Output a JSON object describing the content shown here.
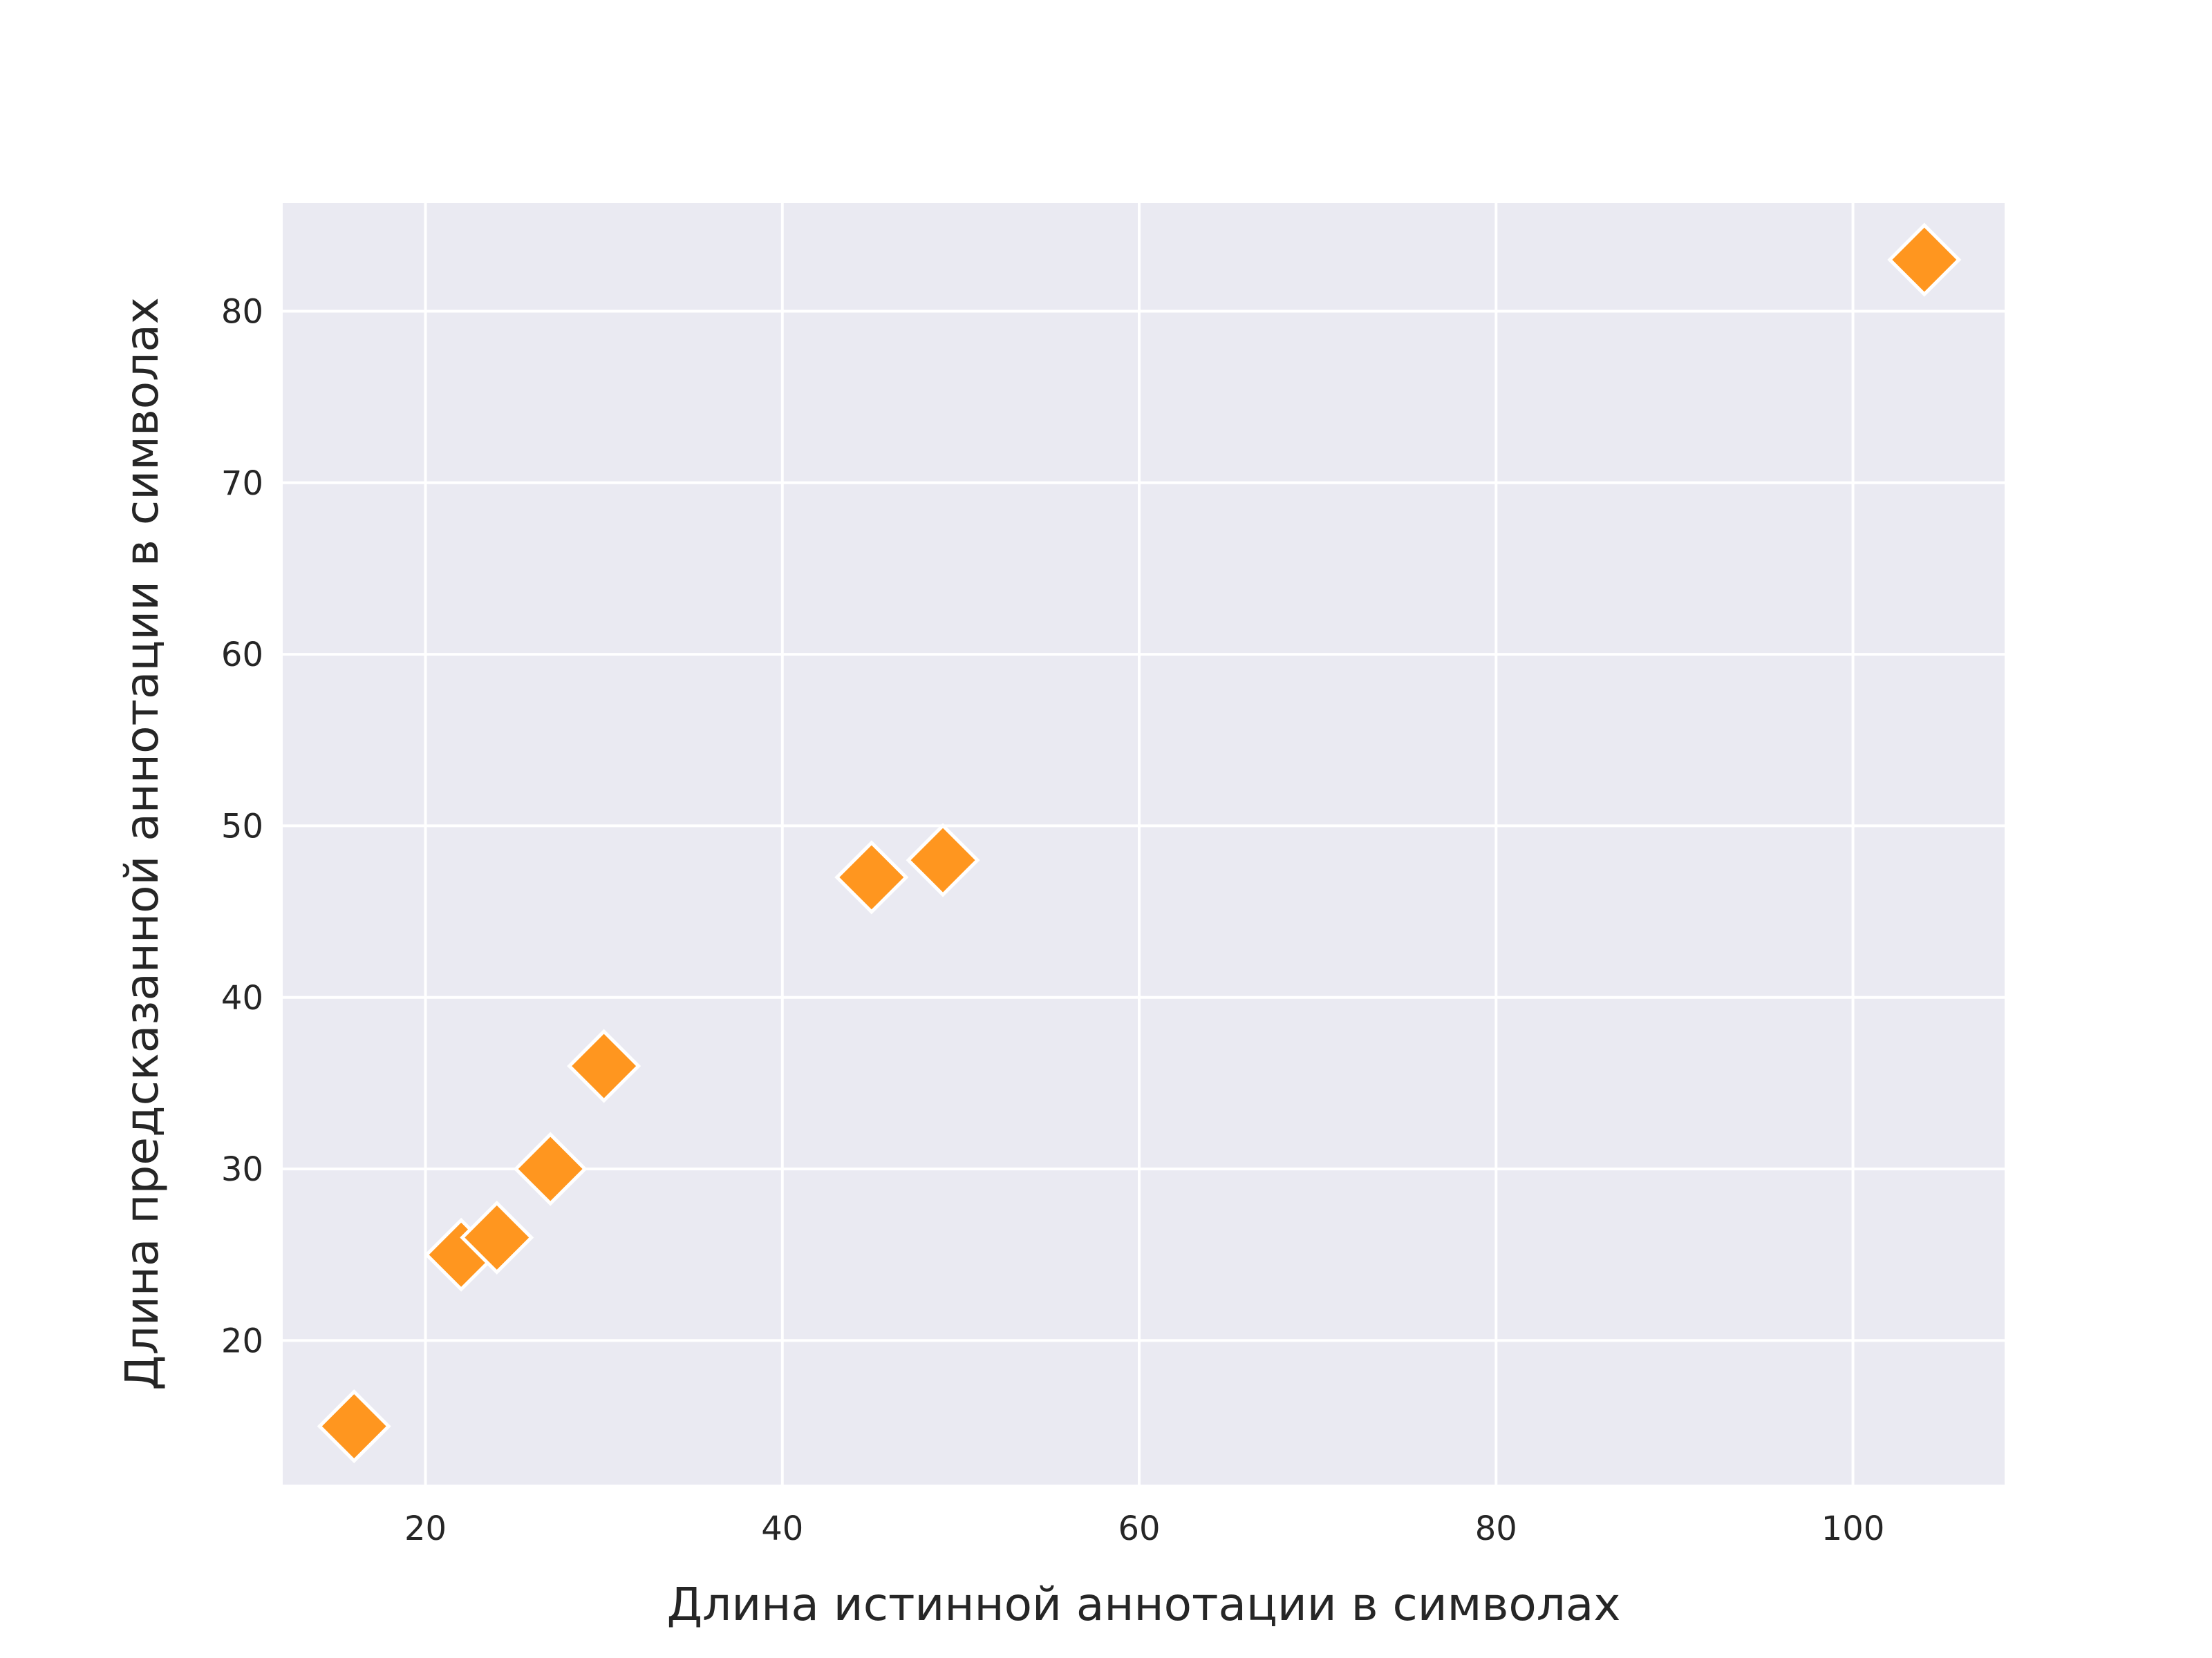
{
  "chart_data": {
    "type": "scatter",
    "title": "",
    "xlabel": "Длина истинной аннотации в символах",
    "ylabel": "Длина предсказанной аннотации в символах",
    "xlim": [
      12,
      108.5
    ],
    "ylim": [
      11.6,
      86.3
    ],
    "xticks": [
      20,
      40,
      60,
      80,
      100
    ],
    "yticks": [
      20,
      30,
      40,
      50,
      60,
      70,
      80
    ],
    "grid": true,
    "marker": "diamond",
    "colors": {
      "marker": "#FF961F",
      "marker_edge": "#ffffff",
      "plot_background": "#EAEAF2",
      "grid": "#ffffff",
      "text": "#262626"
    },
    "points": [
      {
        "x": 16,
        "y": 15
      },
      {
        "x": 22,
        "y": 25
      },
      {
        "x": 24,
        "y": 26
      },
      {
        "x": 27,
        "y": 30
      },
      {
        "x": 30,
        "y": 36
      },
      {
        "x": 45,
        "y": 47
      },
      {
        "x": 49,
        "y": 48
      },
      {
        "x": 104,
        "y": 83
      }
    ]
  }
}
